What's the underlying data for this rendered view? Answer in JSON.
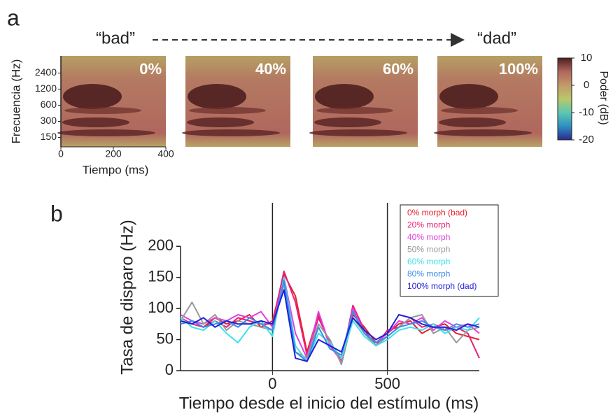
{
  "chart_data": [
    {
      "type": "spectrogram",
      "panel_label": "a",
      "from_label": "“bad”",
      "to_label": "“dad”",
      "panels": [
        "0%",
        "40%",
        "60%",
        "100%"
      ],
      "x_label": "Tiempo (ms)",
      "y_label": "Frecuencia (Hz)",
      "xlim": [
        0,
        400
      ],
      "xticks": [
        0,
        200,
        400
      ],
      "ylim": [
        100,
        5000
      ],
      "yticks": [
        150,
        300,
        600,
        1200,
        2400
      ],
      "log_y": true,
      "colorbar_label": "Poder (dB)",
      "clim": [
        -20,
        10
      ],
      "cticks": [
        10,
        0,
        -10,
        -20
      ],
      "colormap": [
        "#2b2a8c",
        "#2f8fc2",
        "#5cc7b0",
        "#b9c76a",
        "#c29a6a",
        "#b0675d",
        "#4d1f1f"
      ]
    },
    {
      "type": "line",
      "panel_label": "b",
      "x_label": "Tiempo desde el inicio del estímulo (ms)",
      "y_label": "Tasa de disparo (Hz)",
      "xlim": [
        -400,
        900
      ],
      "xticks": [
        0,
        500
      ],
      "ylim": [
        0,
        270
      ],
      "yticks": [
        0,
        50,
        100,
        150,
        200
      ],
      "vlines": [
        0,
        500
      ],
      "legend": "upper right",
      "x": [
        -400,
        -350,
        -300,
        -250,
        -200,
        -150,
        -100,
        -50,
        0,
        50,
        100,
        150,
        200,
        250,
        300,
        350,
        400,
        450,
        500,
        550,
        600,
        650,
        700,
        750,
        800,
        850,
        900
      ],
      "series": [
        {
          "name": "0% morph (bad)",
          "color": "#e8202a",
          "values": [
            75,
            80,
            70,
            85,
            75,
            80,
            90,
            70,
            80,
            155,
            120,
            30,
            90,
            40,
            20,
            90,
            70,
            45,
            60,
            75,
            80,
            60,
            70,
            75,
            60,
            55,
            50
          ]
        },
        {
          "name": "20% morph",
          "color": "#e8207a",
          "values": [
            85,
            75,
            70,
            80,
            70,
            85,
            80,
            75,
            75,
            160,
            110,
            25,
            85,
            45,
            15,
            105,
            65,
            40,
            65,
            70,
            85,
            70,
            75,
            65,
            70,
            60,
            20
          ]
        },
        {
          "name": "40% morph",
          "color": "#e040e0",
          "values": [
            90,
            80,
            75,
            85,
            80,
            90,
            85,
            95,
            70,
            150,
            60,
            20,
            95,
            40,
            15,
            100,
            60,
            45,
            60,
            80,
            75,
            85,
            65,
            80,
            70,
            75,
            60
          ]
        },
        {
          "name": "50% morph",
          "color": "#999999",
          "values": [
            80,
            110,
            75,
            90,
            65,
            80,
            75,
            70,
            65,
            140,
            30,
            20,
            75,
            50,
            10,
            85,
            60,
            40,
            55,
            70,
            85,
            90,
            60,
            70,
            45,
            65,
            70
          ]
        },
        {
          "name": "60% morph",
          "color": "#3de0e8",
          "values": [
            85,
            70,
            65,
            80,
            60,
            45,
            70,
            80,
            55,
            150,
            40,
            15,
            60,
            45,
            20,
            80,
            55,
            40,
            50,
            65,
            70,
            65,
            75,
            60,
            70,
            65,
            85
          ]
        },
        {
          "name": "80% morph",
          "color": "#3a8ce8",
          "values": [
            75,
            80,
            70,
            75,
            80,
            70,
            85,
            75,
            65,
            145,
            30,
            15,
            70,
            35,
            25,
            95,
            60,
            45,
            55,
            70,
            75,
            80,
            70,
            65,
            75,
            70,
            75
          ]
        },
        {
          "name": "100% morph (dad)",
          "color": "#2020d8",
          "values": [
            80,
            75,
            85,
            70,
            80,
            75,
            75,
            80,
            75,
            130,
            20,
            15,
            50,
            40,
            30,
            85,
            65,
            50,
            60,
            90,
            85,
            75,
            70,
            70,
            65,
            75,
            70
          ]
        }
      ]
    }
  ]
}
